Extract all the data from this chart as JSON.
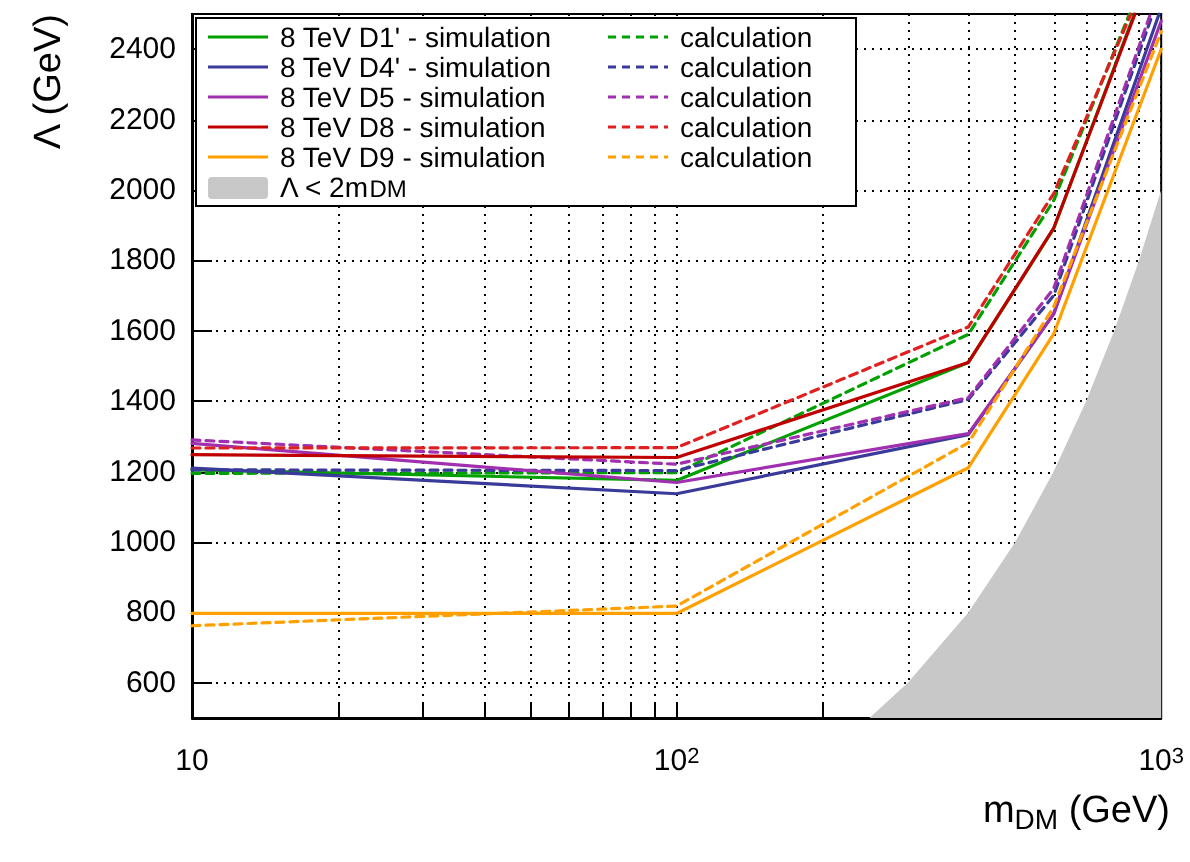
{
  "chart_data": {
    "type": "line",
    "xlabel": "m$_{DM}$ (GeV)",
    "ylabel": "Λ (GeV)",
    "log": "x",
    "xlim": [
      10,
      1000
    ],
    "ylim": [
      500,
      2500
    ],
    "xticks": [
      10,
      {
        "value": 20,
        "label": null
      },
      {
        "value": 30,
        "label": null
      },
      {
        "value": 40,
        "label": null
      },
      {
        "value": 50,
        "label": null
      },
      {
        "value": 60,
        "label": null
      },
      {
        "value": 70,
        "label": null
      },
      {
        "value": 80,
        "label": null
      },
      {
        "value": 90,
        "label": null
      },
      {
        "value": 100,
        "label": "10$^{2}$"
      },
      {
        "value": 200,
        "label": null
      },
      {
        "value": 300,
        "label": null
      },
      {
        "value": 400,
        "label": null
      },
      {
        "value": 500,
        "label": null
      },
      {
        "value": 600,
        "label": null
      },
      {
        "value": 700,
        "label": null
      },
      {
        "value": 800,
        "label": null
      },
      {
        "value": 900,
        "label": null
      },
      {
        "value": 1000,
        "label": "10$^{3}$"
      }
    ],
    "yticks": [
      600,
      800,
      1000,
      1200,
      1400,
      1600,
      1800,
      2000,
      2200,
      2400
    ],
    "grid": true,
    "legend": "top left",
    "series": [
      {
        "name": "8 TeV D1' - simulation",
        "color": "#00a000",
        "line_style": "solid",
        "x": [
          10,
          100,
          400,
          600,
          880
        ],
        "values": [
          1205,
          1175,
          1510,
          1890,
          2500
        ]
      },
      {
        "name": "calculation",
        "color": "#00a000",
        "line_style": "dashed",
        "x": [
          10,
          100,
          400,
          600,
          860
        ],
        "values": [
          1195,
          1197,
          1590,
          1970,
          2500
        ]
      },
      {
        "name": "8 TeV D4' - simulation",
        "color": "#3a3a9a",
        "line_style": "solid",
        "x": [
          10,
          100,
          400,
          600,
          990
        ],
        "values": [
          1210,
          1137,
          1305,
          1648,
          2500
        ]
      },
      {
        "name": "calculation",
        "color": "#3a3a9a",
        "line_style": "dashed",
        "x": [
          10,
          100,
          400,
          600,
          960
        ],
        "values": [
          1205,
          1203,
          1405,
          1700,
          2500
        ]
      },
      {
        "name": "8 TeV D5 - simulation",
        "color": "#a030b0",
        "line_style": "solid",
        "x": [
          10,
          100,
          400,
          600,
          1000
        ],
        "values": [
          1280,
          1169,
          1308,
          1648,
          2480
        ]
      },
      {
        "name": "calculation",
        "color": "#a030b0",
        "line_style": "dashed",
        "x": [
          10,
          100,
          400,
          600,
          950
        ],
        "values": [
          1290,
          1221,
          1410,
          1720,
          2500
        ]
      },
      {
        "name": "8 TeV D8 - simulation",
        "color": "#c00000",
        "line_style": "solid",
        "x": [
          10,
          100,
          400,
          600,
          883
        ],
        "values": [
          1248,
          1240,
          1510,
          1892,
          2500
        ]
      },
      {
        "name": "calculation",
        "color": "#e02020",
        "line_style": "dashed",
        "x": [
          10,
          100,
          400,
          600,
          866
        ],
        "values": [
          1267,
          1268,
          1611,
          1990,
          2500
        ]
      },
      {
        "name": "8 TeV D9 - simulation",
        "color": "#ffa000",
        "line_style": "solid",
        "x": [
          10,
          100,
          400,
          600,
          1000
        ],
        "values": [
          797,
          797,
          1211,
          1591,
          2400
        ]
      },
      {
        "name": "calculation",
        "color": "#ffa000",
        "line_style": "dashed",
        "x": [
          10,
          100,
          400,
          600,
          1000
        ],
        "values": [
          762,
          818,
          1282,
          1668,
          2450
        ]
      },
      {
        "name": "Λ < 2m$_{DM}$",
        "type": "area",
        "color": "#c8c8c8",
        "x": [
          250,
          300,
          400,
          500,
          600,
          700,
          800,
          900,
          1000
        ],
        "values": [
          500,
          600,
          800,
          1000,
          1200,
          1400,
          1600,
          1800,
          2000
        ]
      }
    ]
  }
}
